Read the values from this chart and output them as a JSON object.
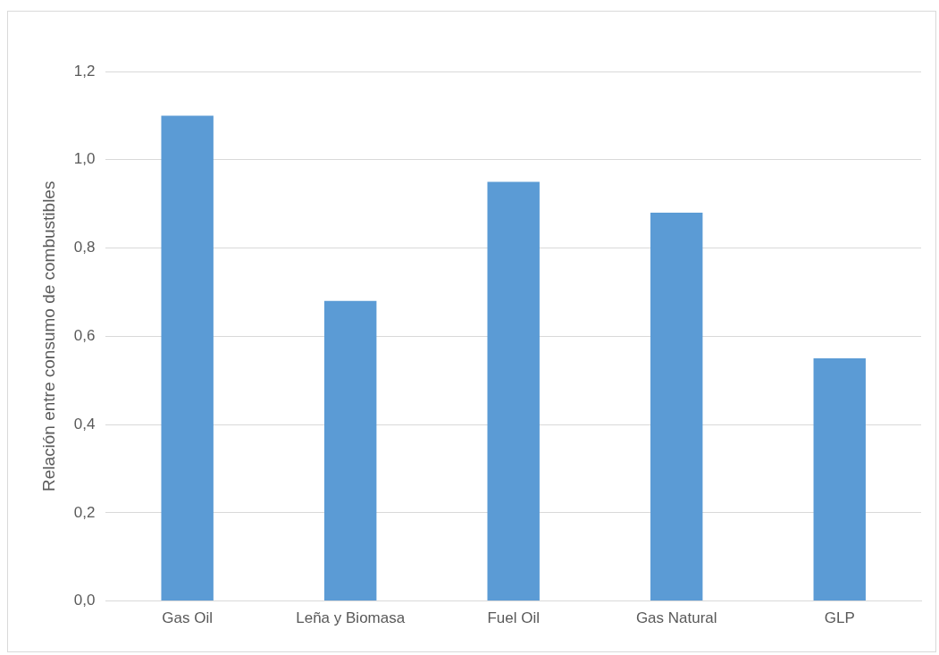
{
  "chart_data": {
    "type": "bar",
    "ylabel": "Relación entre consumo de combustibles",
    "categories": [
      "Gas Oil",
      "Leña y Biomasa",
      "Fuel Oil",
      "Gas Natural",
      "GLP"
    ],
    "values": [
      1.1,
      0.68,
      0.95,
      0.88,
      0.55
    ],
    "color": "#5b9bd5",
    "ylim": [
      0,
      1.2
    ],
    "yticks": [
      {
        "value": 0,
        "label": "0,0"
      },
      {
        "value": 0.2,
        "label": "0,2"
      },
      {
        "value": 0.4,
        "label": "0,4"
      },
      {
        "value": 0.6,
        "label": "0,6"
      },
      {
        "value": 0.8,
        "label": "0,8"
      },
      {
        "value": 1.0,
        "label": "1,0"
      },
      {
        "value": 1.2,
        "label": "1,2"
      }
    ],
    "grid": "y",
    "legend": false
  }
}
